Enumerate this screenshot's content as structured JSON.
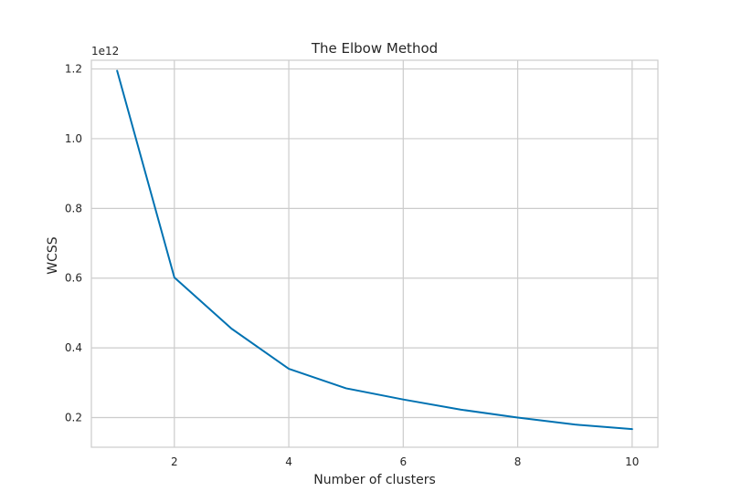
{
  "chart_data": {
    "type": "line",
    "title": "The Elbow Method",
    "xlabel": "Number of clusters",
    "ylabel": "WCSS",
    "y_offset_label": "1e12",
    "x": [
      1,
      2,
      3,
      4,
      5,
      6,
      7,
      8,
      9,
      10
    ],
    "series": [
      {
        "values": [
          1195000000000.0,
          602000000000.0,
          455000000000.0,
          340000000000.0,
          284000000000.0,
          252000000000.0,
          223000000000.0,
          200000000000.0,
          180000000000.0,
          167000000000.0
        ],
        "color": "#0072b2"
      }
    ],
    "xlim": [
      0.55,
      10.45
    ],
    "ylim": [
      115000000000.0,
      1225000000000.0
    ],
    "xticks": [
      2,
      4,
      6,
      8,
      10
    ],
    "xtick_labels": [
      "2",
      "4",
      "6",
      "8",
      "10"
    ],
    "yticks": [
      200000000000.0,
      400000000000.0,
      600000000000.0,
      800000000000.0,
      1000000000000.0,
      1200000000000.0
    ],
    "ytick_labels": [
      "0.2",
      "0.4",
      "0.6",
      "0.8",
      "1.0",
      "1.2"
    ],
    "grid": true,
    "grid_color": "#cccccc",
    "frame_color": "#cccccc",
    "legend": "none"
  }
}
